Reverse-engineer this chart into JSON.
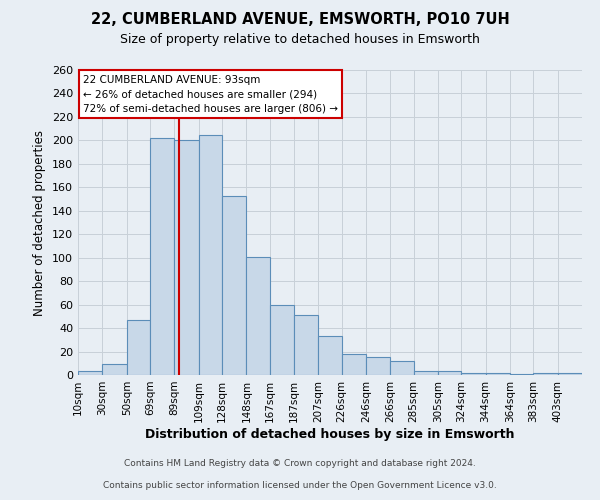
{
  "title1": "22, CUMBERLAND AVENUE, EMSWORTH, PO10 7UH",
  "title2": "Size of property relative to detached houses in Emsworth",
  "xlabel": "Distribution of detached houses by size in Emsworth",
  "ylabel": "Number of detached properties",
  "bar_labels": [
    "10sqm",
    "30sqm",
    "50sqm",
    "69sqm",
    "89sqm",
    "109sqm",
    "128sqm",
    "148sqm",
    "167sqm",
    "187sqm",
    "207sqm",
    "226sqm",
    "246sqm",
    "266sqm",
    "285sqm",
    "305sqm",
    "324sqm",
    "344sqm",
    "364sqm",
    "383sqm",
    "403sqm"
  ],
  "bar_heights": [
    3,
    9,
    47,
    202,
    200,
    205,
    153,
    101,
    60,
    51,
    33,
    18,
    15,
    12,
    3,
    3,
    2,
    2,
    1,
    2,
    2
  ],
  "bar_color": "#c8d8e8",
  "bar_edge_color": "#5b8db8",
  "vline_x": 93,
  "vline_color": "#cc0000",
  "ylim": [
    0,
    260
  ],
  "yticks": [
    0,
    20,
    40,
    60,
    80,
    100,
    120,
    140,
    160,
    180,
    200,
    220,
    240,
    260
  ],
  "grid_color": "#c8d0d8",
  "bg_color": "#e8eef4",
  "annotation_title": "22 CUMBERLAND AVENUE: 93sqm",
  "annotation_line1": "← 26% of detached houses are smaller (294)",
  "annotation_line2": "72% of semi-detached houses are larger (806) →",
  "annotation_box_color": "#ffffff",
  "annotation_border_color": "#cc0000",
  "footer1": "Contains HM Land Registry data © Crown copyright and database right 2024.",
  "footer2": "Contains public sector information licensed under the Open Government Licence v3.0.",
  "bin_edges": [
    10,
    30,
    50,
    69,
    89,
    109,
    128,
    148,
    167,
    187,
    207,
    226,
    246,
    266,
    285,
    305,
    324,
    344,
    364,
    383,
    403,
    423
  ]
}
